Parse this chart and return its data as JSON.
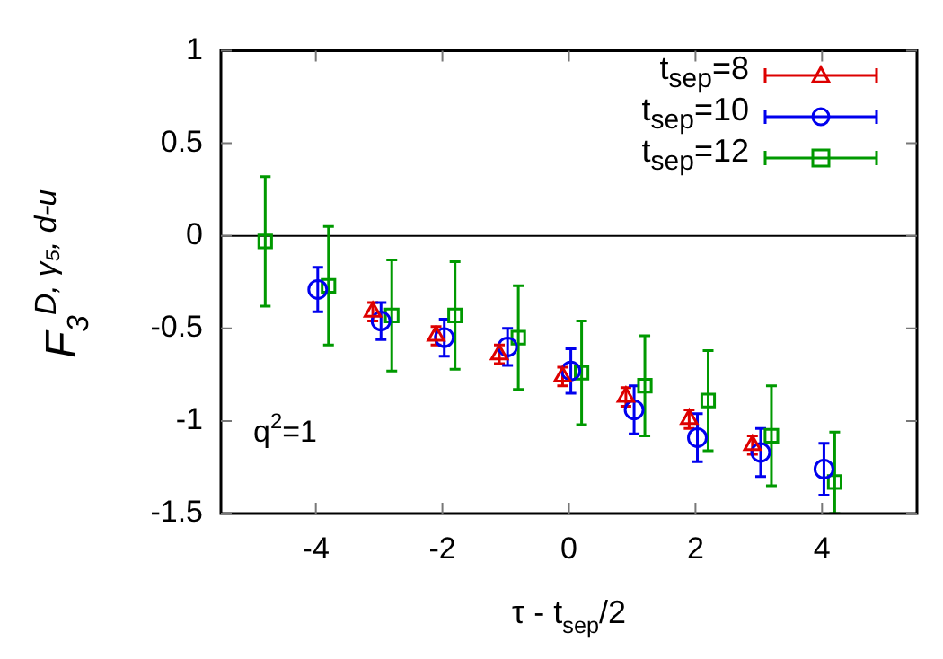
{
  "chart_data": {
    "type": "scatter",
    "xlabel": "τ - t$_{sep}$/2",
    "ylabel": "F$_{3}$$^{D, γ₅, d-u}$",
    "xlim": [
      -5.5,
      5.5
    ],
    "xticks": [
      -4,
      -2,
      0,
      2,
      4
    ],
    "ylim": [
      -1.5,
      1
    ],
    "yticks": [
      -1.5,
      -1,
      -0.5,
      0,
      0.5,
      1
    ],
    "grid": false,
    "legend": "top right",
    "ref_lines": [
      {
        "axis": "y",
        "value": 0,
        "color": "#000000"
      }
    ],
    "annotations": [
      "q$^{2}$=1"
    ],
    "series": [
      {
        "name": "t$_{sep}$=8",
        "color": "#dd0000",
        "marker": "triangle",
        "x": [
          -3.1,
          -2.1,
          -1.1,
          -0.1,
          0.9,
          1.9,
          2.9
        ],
        "values": [
          -0.41,
          -0.54,
          -0.64,
          -0.76,
          -0.87,
          -0.99,
          -1.13
        ],
        "errors": [
          0.05,
          0.05,
          0.05,
          0.05,
          0.05,
          0.05,
          0.05
        ]
      },
      {
        "name": "t$_{sep}$=10",
        "color": "#0000ee",
        "marker": "circle",
        "x": [
          -3.97,
          -2.97,
          -1.97,
          -0.97,
          0.03,
          1.03,
          2.03,
          3.03,
          4.03
        ],
        "values": [
          -0.29,
          -0.46,
          -0.55,
          -0.6,
          -0.73,
          -0.94,
          -1.09,
          -1.17,
          -1.26
        ],
        "errors": [
          0.12,
          0.1,
          0.1,
          0.1,
          0.12,
          0.13,
          0.13,
          0.13,
          0.14
        ]
      },
      {
        "name": "t$_{sep}$=12",
        "color": "#009900",
        "marker": "square",
        "x": [
          -4.8,
          -3.8,
          -2.8,
          -1.8,
          -0.8,
          0.2,
          1.2,
          2.2,
          3.2,
          4.2
        ],
        "values": [
          -0.03,
          -0.27,
          -0.43,
          -0.43,
          -0.55,
          -0.74,
          -0.81,
          -0.89,
          -1.08,
          -1.33
        ],
        "errors": [
          0.35,
          0.32,
          0.3,
          0.29,
          0.28,
          0.28,
          0.27,
          0.27,
          0.27,
          [
            -1.5,
            -1.06
          ]
        ]
      }
    ]
  }
}
